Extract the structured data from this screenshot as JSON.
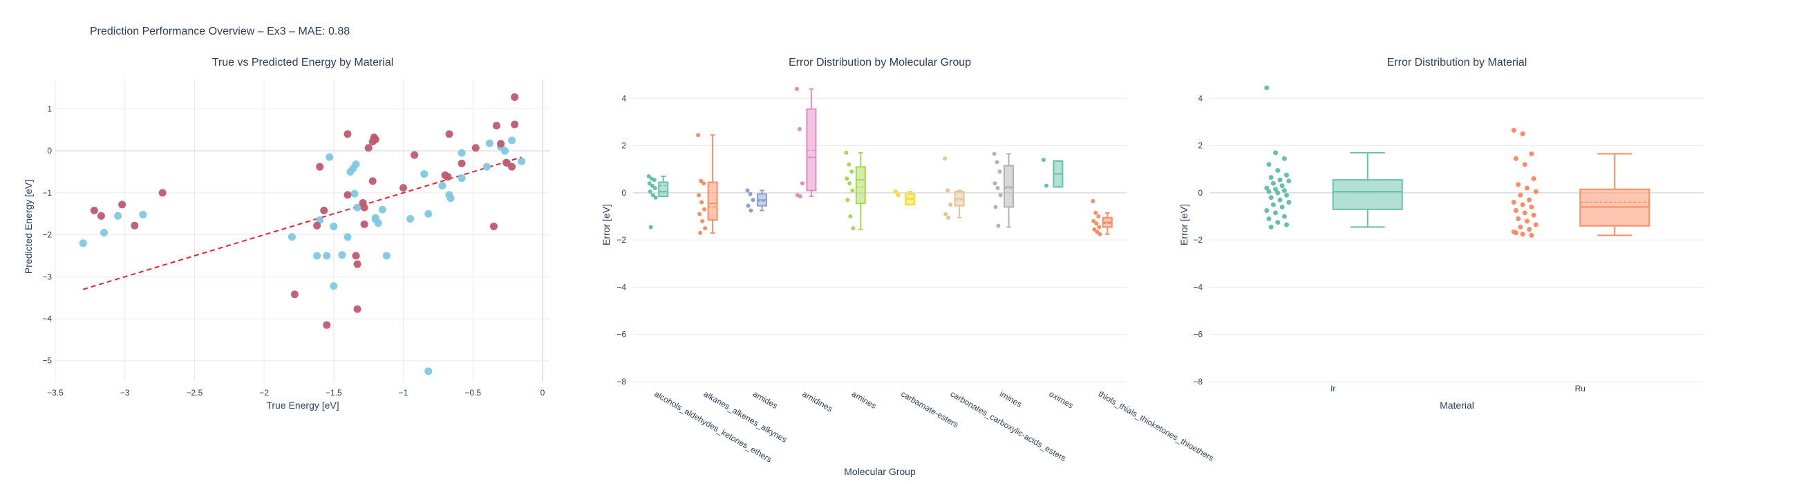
{
  "figure": {
    "title": "Prediction Performance Overview – Ex3 – MAE: 0.88"
  },
  "colors": {
    "scatter_ir": "#7ec8e3",
    "scatter_ru": "#c05a6e",
    "fit_line": "#e8202a",
    "grid": "#ebebeb",
    "text": "#2a3f5f",
    "group_palette": [
      "#66c2a5",
      "#fc8d62",
      "#8da0cb",
      "#e78ac3",
      "#a6d854",
      "#ffd92f",
      "#e5c494",
      "#b3b3b3",
      "#66c2a5",
      "#fc8d62"
    ]
  },
  "chart_data": [
    {
      "type": "scatter",
      "title": "True vs Predicted Energy by Material",
      "xlabel": "True Energy [eV]",
      "ylabel": "Predicted Energy [eV]",
      "xlim": [
        -3.5,
        0.05
      ],
      "ylim": [
        -5.5,
        1.7
      ],
      "xticks": [
        -3.5,
        -3,
        -2.5,
        -2,
        -1.5,
        -1,
        -0.5,
        0
      ],
      "yticks": [
        -5,
        -4,
        -3,
        -2,
        -1,
        0,
        1
      ],
      "grid": true,
      "legend": "none",
      "fit_line": {
        "x": [
          -3.3,
          -0.15
        ],
        "y": [
          -3.3,
          -0.15
        ]
      },
      "series": [
        {
          "color_key": "scatter_ir",
          "points": [
            [
              -3.3,
              -2.2
            ],
            [
              -3.15,
              -1.95
            ],
            [
              -3.05,
              -1.55
            ],
            [
              -2.87,
              -1.52
            ],
            [
              -1.8,
              -2.05
            ],
            [
              -1.62,
              -2.5
            ],
            [
              -1.6,
              -1.65
            ],
            [
              -1.53,
              -0.15
            ],
            [
              -1.5,
              -1.8
            ],
            [
              -1.5,
              -3.22
            ],
            [
              -1.44,
              -2.48
            ],
            [
              -1.4,
              -2.05
            ],
            [
              -1.38,
              -0.5
            ],
            [
              -1.36,
              -0.42
            ],
            [
              -1.34,
              -0.32
            ],
            [
              -1.35,
              -1.02
            ],
            [
              -1.33,
              -1.35
            ],
            [
              -1.2,
              -1.63
            ],
            [
              -1.18,
              -1.72
            ],
            [
              -1.15,
              -1.4
            ],
            [
              -1.12,
              -2.5
            ],
            [
              -0.95,
              -1.62
            ],
            [
              -0.85,
              -0.55
            ],
            [
              -0.82,
              -1.5
            ],
            [
              -0.82,
              -5.25
            ],
            [
              -0.72,
              -0.83
            ],
            [
              -0.67,
              -1.05
            ],
            [
              -0.66,
              -1.13
            ],
            [
              -0.58,
              -0.05
            ],
            [
              -0.58,
              -0.65
            ],
            [
              -0.38,
              0.18
            ],
            [
              -0.3,
              0.1
            ],
            [
              -0.27,
              0.0
            ],
            [
              -0.25,
              -0.3
            ],
            [
              -0.22,
              0.25
            ],
            [
              -0.15,
              -0.25
            ],
            [
              -0.4,
              -0.38
            ],
            [
              -1.55,
              -2.5
            ],
            [
              -1.2,
              -1.6
            ]
          ]
        },
        {
          "color_key": "scatter_ru",
          "points": [
            [
              -3.22,
              -1.42
            ],
            [
              -3.17,
              -1.55
            ],
            [
              -3.02,
              -1.28
            ],
            [
              -2.93,
              -1.78
            ],
            [
              -2.73,
              -1.0
            ],
            [
              -1.78,
              -3.42
            ],
            [
              -1.62,
              -1.78
            ],
            [
              -1.6,
              -0.38
            ],
            [
              -1.57,
              -1.42
            ],
            [
              -1.55,
              -4.15
            ],
            [
              -1.4,
              0.4
            ],
            [
              -1.4,
              -1.05
            ],
            [
              -1.34,
              -2.5
            ],
            [
              -1.33,
              -2.7
            ],
            [
              -1.33,
              -3.77
            ],
            [
              -1.29,
              -1.24
            ],
            [
              -1.28,
              -1.35
            ],
            [
              -1.25,
              0.07
            ],
            [
              -1.22,
              0.22
            ],
            [
              -1.21,
              0.32
            ],
            [
              -1.2,
              0.27
            ],
            [
              -1.28,
              -1.75
            ],
            [
              -1.22,
              -0.72
            ],
            [
              -1.0,
              -0.88
            ],
            [
              -0.92,
              -0.1
            ],
            [
              -0.7,
              -0.58
            ],
            [
              -0.68,
              -0.62
            ],
            [
              -0.67,
              0.4
            ],
            [
              -0.58,
              -0.3
            ],
            [
              -0.48,
              0.07
            ],
            [
              -0.35,
              -1.8
            ],
            [
              -0.33,
              0.6
            ],
            [
              -0.3,
              0.17
            ],
            [
              -0.26,
              -0.28
            ],
            [
              -0.2,
              0.63
            ],
            [
              -0.2,
              1.28
            ],
            [
              -0.22,
              -0.38
            ]
          ]
        }
      ]
    },
    {
      "type": "box",
      "title": "Error Distribution by Molecular Group",
      "xlabel": "Molecular Group",
      "ylabel": "Error [eV]",
      "ylim": [
        -8,
        4.8
      ],
      "yticks": [
        -8,
        -6,
        -4,
        -2,
        0,
        2,
        4
      ],
      "grid": true,
      "legend": "none",
      "categories": [
        "alcohols_aldehydes_ketones_ethers",
        "alkanes_alkenes_alkynes",
        "amides",
        "amidines",
        "amines",
        "carbamate-esters",
        "carbonates_carboxylic-acids_esters",
        "imines",
        "oximes",
        "thiols_thials_thioketones_thioethers"
      ],
      "boxes": [
        {
          "q1": -0.15,
          "median": 0.05,
          "q3": 0.45,
          "lower": -0.15,
          "upper": 0.7,
          "mean": 0.3,
          "points": [
            0.7,
            0.6,
            0.55,
            0.4,
            0.3,
            0.2,
            0.05,
            -0.1,
            -0.2,
            -1.45
          ]
        },
        {
          "q1": -1.15,
          "median": -0.45,
          "q3": 0.45,
          "lower": -1.7,
          "upper": 2.45,
          "mean": -0.6,
          "points": [
            2.45,
            0.5,
            0.4,
            -0.1,
            -0.4,
            -0.7,
            -0.9,
            -1.2,
            -1.5,
            -1.7
          ]
        },
        {
          "q1": -0.55,
          "median": -0.3,
          "q3": -0.05,
          "lower": -0.75,
          "upper": 0.1,
          "mean": -0.35,
          "points": [
            0.1,
            -0.05,
            -0.3,
            -0.55,
            -0.75
          ]
        },
        {
          "q1": 0.1,
          "median": 1.5,
          "q3": 3.55,
          "lower": -0.15,
          "upper": 4.4,
          "mean": 1.8,
          "points": [
            4.4,
            2.7,
            0.4,
            -0.1,
            -0.15
          ]
        },
        {
          "q1": -0.45,
          "median": 0.55,
          "q3": 1.1,
          "lower": -1.55,
          "upper": 1.7,
          "mean": 0.25,
          "points": [
            1.7,
            1.2,
            0.9,
            0.6,
            0.4,
            0.1,
            -0.3,
            -1.0,
            -1.5
          ]
        },
        {
          "q1": -0.5,
          "median": -0.25,
          "q3": -0.05,
          "lower": -0.5,
          "upper": 0.05,
          "mean": -0.28,
          "points": [
            0.05,
            -0.1
          ]
        },
        {
          "q1": -0.55,
          "median": -0.25,
          "q3": 0.05,
          "lower": -1.05,
          "upper": 0.1,
          "mean": -0.3,
          "points": [
            1.45,
            0.1,
            -0.5,
            -0.9,
            -1.05
          ]
        },
        {
          "q1": -0.6,
          "median": 0.25,
          "q3": 1.15,
          "lower": -1.45,
          "upper": 1.65,
          "mean": 0.2,
          "points": [
            1.65,
            1.3,
            0.9,
            0.4,
            0.2,
            -0.1,
            -0.6,
            -1.4
          ]
        },
        {
          "q1": 0.25,
          "median": 0.8,
          "q3": 1.35,
          "lower": 0.25,
          "upper": 1.35,
          "mean": 0.8,
          "points": [
            1.4,
            0.3
          ]
        },
        {
          "q1": -1.45,
          "median": -1.25,
          "q3": -1.05,
          "lower": -1.75,
          "upper": -0.85,
          "mean": -1.3,
          "points": [
            -0.35,
            -0.85,
            -1.0,
            -1.2,
            -1.3,
            -1.45,
            -1.55,
            -1.65,
            -1.75
          ]
        }
      ]
    },
    {
      "type": "box",
      "title": "Error Distribution by Material",
      "xlabel": "Material",
      "ylabel": "Error [eV]",
      "ylim": [
        -8,
        4.8
      ],
      "yticks": [
        -8,
        -6,
        -4,
        -2,
        0,
        2,
        4
      ],
      "grid": true,
      "legend": "none",
      "categories": [
        "Ir",
        "Ru"
      ],
      "boxes": [
        {
          "color": "#66c2a5",
          "q1": -0.7,
          "median": 0.05,
          "q3": 0.55,
          "lower": -1.45,
          "upper": 1.7,
          "mean": 0.05,
          "points": [
            4.45,
            1.7,
            1.45,
            1.2,
            0.95,
            0.75,
            0.65,
            0.55,
            0.5,
            0.4,
            0.3,
            0.2,
            0.15,
            0.1,
            0.05,
            0.0,
            -0.1,
            -0.2,
            -0.3,
            -0.4,
            -0.5,
            -0.6,
            -0.75,
            -0.85,
            -1.0,
            -1.1,
            -1.25,
            -1.35,
            -1.45
          ]
        },
        {
          "color": "#fc8d62",
          "q1": -1.4,
          "median": -0.6,
          "q3": 0.15,
          "lower": -1.8,
          "upper": 1.65,
          "mean": -0.4,
          "points": [
            2.65,
            2.5,
            1.65,
            1.45,
            1.2,
            0.6,
            0.35,
            0.2,
            0.05,
            -0.1,
            -0.3,
            -0.4,
            -0.5,
            -0.6,
            -0.75,
            -0.85,
            -0.95,
            -1.1,
            -1.2,
            -1.35,
            -1.45,
            -1.55,
            -1.65,
            -1.75,
            -1.8,
            -1.7
          ]
        }
      ]
    }
  ]
}
